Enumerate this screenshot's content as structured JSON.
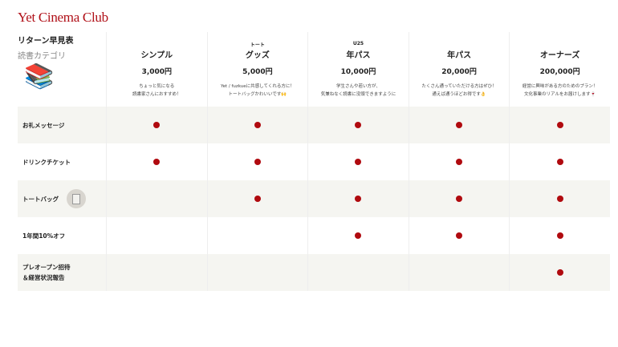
{
  "brand": "Yet Cinema Club",
  "header": {
    "title": "リターン早見表",
    "subtitle": "読書カテゴリ",
    "icon": "books-emoji"
  },
  "plans": [
    {
      "sup": "",
      "name": "シンプル",
      "price": "3,000円",
      "desc1": "ちょっと気になる",
      "desc2": "読書家さんにおすすめ！"
    },
    {
      "sup": "トート",
      "name": "グッズ",
      "price": "5,000円",
      "desc1": "Yet / fuzkueに共感してくれる方に！",
      "desc2": "トートバッグかわいいです🙌"
    },
    {
      "sup": "U25",
      "name": "年パス",
      "price": "10,000円",
      "desc1": "学生さんや若い方が、",
      "desc2": "気兼ねなく読書に没頭できますように"
    },
    {
      "sup": "",
      "name": "年パス",
      "price": "20,000円",
      "desc1": "たくさん通っていただける方はぜひ！",
      "desc2": "通えば通うほどお得です👌"
    },
    {
      "sup": "",
      "name": "オーナーズ",
      "price": "200,000円",
      "desc1": "経営に興味がある方のためのプラン！",
      "desc2": "文化事業のリアルをお届けします🍷"
    }
  ],
  "rows": [
    {
      "label1": "お礼メッセージ",
      "label2": "",
      "included": [
        true,
        true,
        true,
        true,
        true
      ]
    },
    {
      "label1": "ドリンクチケット",
      "label2": "",
      "included": [
        true,
        true,
        true,
        true,
        true
      ]
    },
    {
      "label1": "トートバッグ",
      "label2": "",
      "included": [
        false,
        true,
        true,
        true,
        true
      ]
    },
    {
      "label1": "1年間10%オフ",
      "label2": "",
      "included": [
        false,
        false,
        true,
        true,
        true
      ]
    },
    {
      "label1": "プレオープン招待",
      "label2": "＆経営状況報告",
      "included": [
        false,
        false,
        false,
        false,
        true
      ]
    }
  ],
  "colors": {
    "accent": "#b00a0f",
    "row_alt": "#f5f5f1"
  }
}
